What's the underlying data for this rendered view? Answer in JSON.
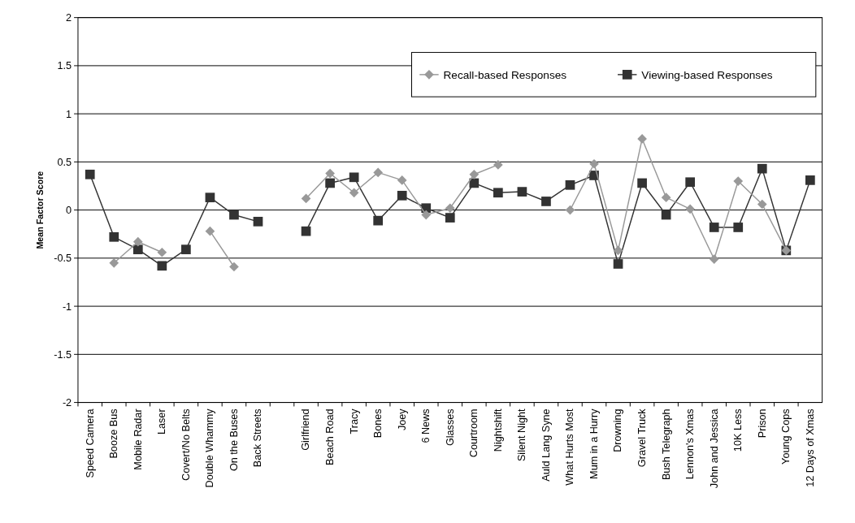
{
  "chart_data": {
    "type": "line",
    "ylabel": "Mean Factor Score",
    "categories": [
      "Speed Camera",
      "Booze Bus",
      "Mobile Radar",
      "Laser",
      "Covert/No Belts",
      "Double Whammy",
      "On the Buses",
      "Back Streets",
      null,
      "Girlfriend",
      "Beach Road",
      "Tracy",
      "Bones",
      "Joey",
      "6 News",
      "Glasses",
      "Courtroom",
      "Nightshift",
      "Silent Night",
      "Auld Lang Syne",
      "What Hurts Most",
      "Mum in a Hurry",
      "Drowning",
      "Gravel Truck",
      "Bush Telegraph",
      "Lennon's Xmas",
      "John and Jessica",
      "10K Less",
      "Prison",
      "Young Cops",
      "12 Days of Xmas"
    ],
    "series": [
      {
        "name": "Recall-based Responses",
        "color": "#999999",
        "marker": "diamond",
        "values": [
          null,
          -0.55,
          -0.33,
          -0.44,
          null,
          -0.22,
          -0.59,
          null,
          null,
          0.12,
          0.38,
          0.18,
          0.39,
          0.31,
          -0.05,
          0.02,
          0.37,
          0.47,
          null,
          null,
          0.0,
          0.48,
          -0.42,
          0.74,
          0.13,
          0.01,
          -0.51,
          0.3,
          0.06,
          -0.42,
          null
        ]
      },
      {
        "name": "Viewing-based Responses",
        "color": "#333333",
        "marker": "square",
        "values": [
          0.37,
          -0.28,
          -0.41,
          -0.58,
          -0.41,
          0.13,
          -0.05,
          -0.12,
          null,
          -0.22,
          0.28,
          0.34,
          -0.11,
          0.15,
          0.02,
          -0.08,
          0.28,
          0.18,
          0.19,
          0.09,
          0.26,
          0.36,
          -0.56,
          0.28,
          -0.05,
          0.29,
          -0.18,
          -0.18,
          0.43,
          -0.42,
          0.31
        ]
      }
    ],
    "ylim": [
      -2,
      2
    ],
    "yticks": [
      -2,
      -1.5,
      -1,
      -0.5,
      0,
      0.5,
      1,
      1.5,
      2
    ],
    "grid": "y",
    "legend": "top right"
  }
}
